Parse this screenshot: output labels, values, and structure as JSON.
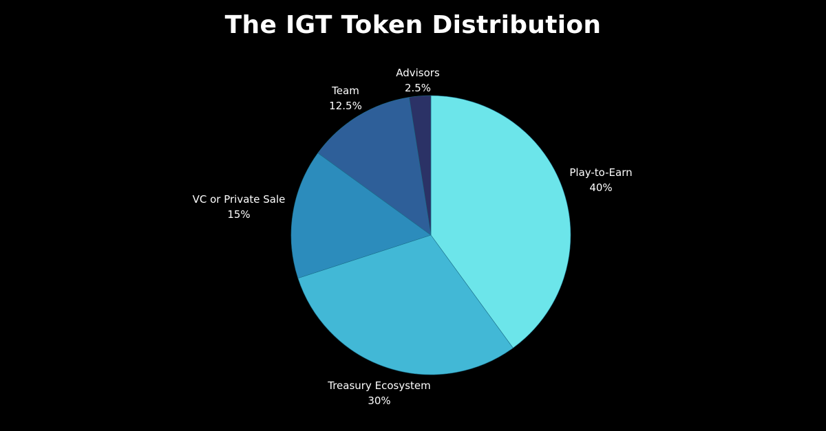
{
  "chart_data": {
    "type": "pie",
    "title": "The IGT Token Distribution",
    "categories": [
      "Play-to-Earn",
      "Treasury Ecosystem",
      "VC or Private Sale",
      "Team",
      "Advisors"
    ],
    "values": [
      40,
      30,
      15,
      12.5,
      2.5
    ],
    "value_labels": [
      "40%",
      "30%",
      "15%",
      "12.5%",
      "2.5%"
    ],
    "colors": [
      "#6ce5ea",
      "#42b8d6",
      "#2c8cbc",
      "#2e5f99",
      "#2b3266"
    ],
    "start_angle_deg": 0,
    "direction": "clockwise",
    "legend": "none"
  }
}
